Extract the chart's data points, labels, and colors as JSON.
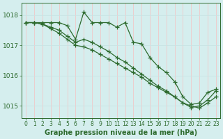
{
  "x": [
    0,
    1,
    2,
    3,
    4,
    5,
    6,
    7,
    8,
    9,
    10,
    11,
    12,
    13,
    14,
    15,
    16,
    17,
    18,
    19,
    20,
    21,
    22,
    23
  ],
  "line1": [
    1017.75,
    1017.75,
    1017.75,
    1017.75,
    1017.75,
    1017.65,
    1017.2,
    1018.1,
    1017.75,
    1017.75,
    1017.75,
    1017.6,
    1017.75,
    1017.1,
    1017.05,
    1016.6,
    1016.3,
    1016.1,
    1015.8,
    1015.3,
    1015.05,
    1015.1,
    1015.45,
    1015.55
  ],
  "line2": [
    1017.75,
    1017.75,
    1017.7,
    1017.6,
    1017.5,
    1017.3,
    1017.1,
    1017.2,
    1017.1,
    1016.95,
    1016.8,
    1016.6,
    1016.45,
    1016.25,
    1016.05,
    1015.85,
    1015.65,
    1015.5,
    1015.3,
    1015.1,
    1014.95,
    1015.0,
    1015.2,
    1015.5
  ],
  "line3": [
    1017.75,
    1017.75,
    1017.7,
    1017.55,
    1017.4,
    1017.2,
    1017.0,
    1016.95,
    1016.85,
    1016.7,
    1016.55,
    1016.4,
    1016.25,
    1016.1,
    1015.95,
    1015.75,
    1015.6,
    1015.45,
    1015.3,
    1015.1,
    1015.0,
    1014.93,
    1015.1,
    1015.3
  ],
  "line_color": "#2d6a2d",
  "bg_color": "#d5eeee",
  "grid_color_h": "#c8e4e4",
  "grid_color_v": "#f0c8c8",
  "xlabel": "Graphe pression niveau de la mer (hPa)",
  "ylim": [
    1014.6,
    1018.4
  ],
  "xlim_min": -0.5,
  "xlim_max": 23.5,
  "yticks": [
    1015,
    1016,
    1017,
    1018
  ],
  "xticks": [
    0,
    1,
    2,
    3,
    4,
    5,
    6,
    7,
    8,
    9,
    10,
    11,
    12,
    13,
    14,
    15,
    16,
    17,
    18,
    19,
    20,
    21,
    22,
    23
  ],
  "marker": "+",
  "markersize": 4,
  "linewidth": 0.9,
  "xlabel_fontsize": 7,
  "tick_fontsize": 5.5,
  "ytick_fontsize": 6.5
}
